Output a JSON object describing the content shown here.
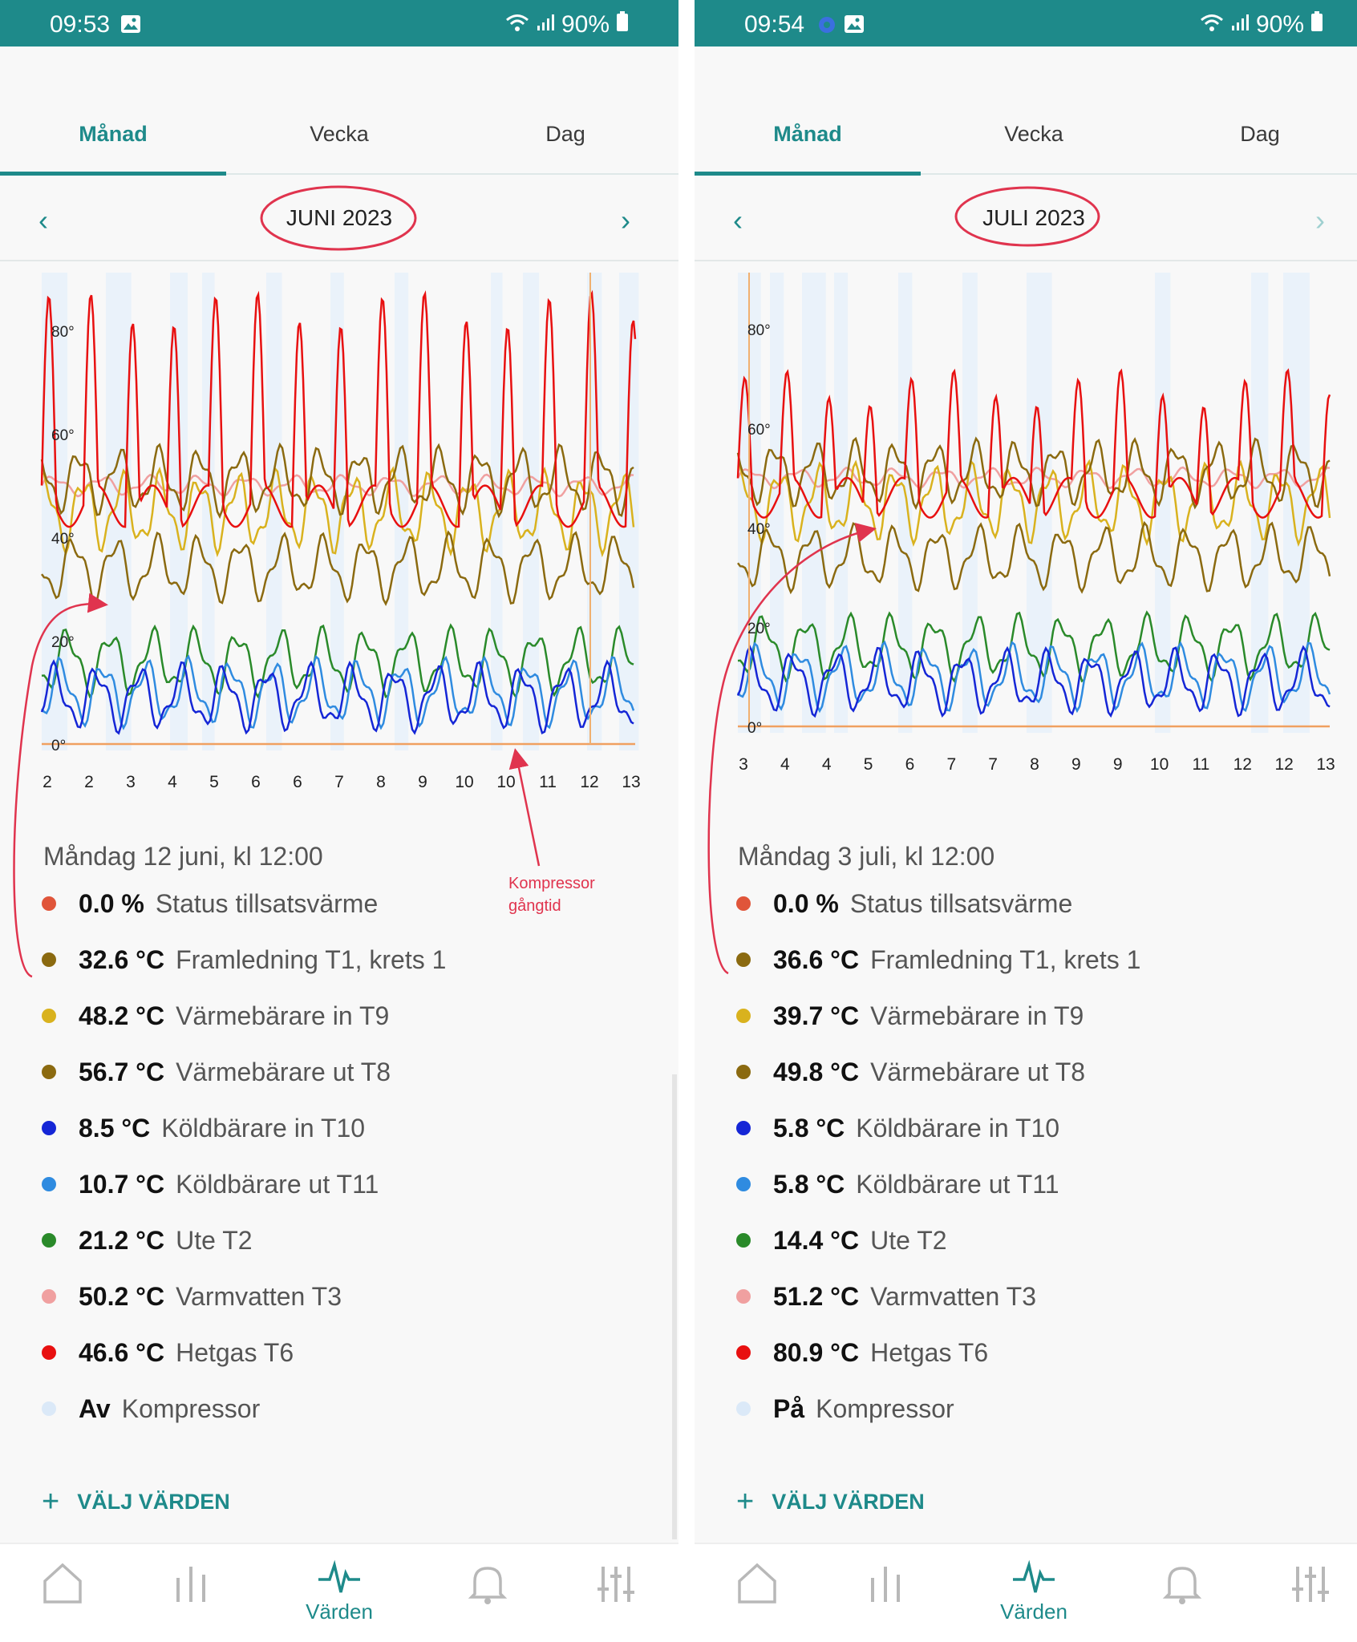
{
  "left": {
    "status": {
      "time": "09:53",
      "battery": "90%"
    },
    "tabs": [
      "Månad",
      "Vecka",
      "Dag"
    ],
    "month": "JUNI 2023",
    "chart": {
      "y_ticks": [
        "80°",
        "60°",
        "40°",
        "20°",
        "0°"
      ],
      "x_ticks": [
        "2",
        "2",
        "3",
        "4",
        "5",
        "6",
        "6",
        "7",
        "8",
        "9",
        "10",
        "10",
        "11",
        "12",
        "13"
      ]
    },
    "readout_title": "Måndag 12 juni, kl 12:00",
    "readings": [
      {
        "value": "0.0 %",
        "label": "Status tillsatsvärme",
        "color": "#e0553a"
      },
      {
        "value": "32.6 °C",
        "label": "Framledning T1, krets 1",
        "color": "#8b6a10"
      },
      {
        "value": "48.2 °C",
        "label": "Värmebärare in T9",
        "color": "#d9b21e"
      },
      {
        "value": "56.7 °C",
        "label": "Värmebärare ut T8",
        "color": "#8b6a10"
      },
      {
        "value": "8.5 °C",
        "label": "Köldbärare in T10",
        "color": "#1526d6"
      },
      {
        "value": "10.7 °C",
        "label": "Köldbärare ut T11",
        "color": "#2f8be0"
      },
      {
        "value": "21.2 °C",
        "label": "Ute T2",
        "color": "#2a8a2a"
      },
      {
        "value": "50.2 °C",
        "label": "Varmvatten T3",
        "color": "#f0a0a0"
      },
      {
        "value": "46.6 °C",
        "label": "Hetgas T6",
        "color": "#e81010"
      },
      {
        "value": "Av",
        "label": "Kompressor",
        "color": "#dbe9f8"
      }
    ],
    "choose_label": "VÄLJ VÄRDEN",
    "annotation": {
      "line1": "Kompressor",
      "line2": "gångtid"
    },
    "nav": {
      "active_label": "Värden"
    }
  },
  "right": {
    "status": {
      "time": "09:54",
      "battery": "90%"
    },
    "tabs": [
      "Månad",
      "Vecka",
      "Dag"
    ],
    "month": "JULI 2023",
    "chart": {
      "y_ticks": [
        "80°",
        "60°",
        "40°",
        "20°",
        "0°"
      ],
      "x_ticks": [
        "3",
        "4",
        "4",
        "5",
        "6",
        "7",
        "7",
        "8",
        "9",
        "9",
        "10",
        "11",
        "12",
        "12",
        "13"
      ]
    },
    "readout_title": "Måndag 3 juli, kl 12:00",
    "readings": [
      {
        "value": "0.0 %",
        "label": "Status tillsatsvärme",
        "color": "#e0553a"
      },
      {
        "value": "36.6 °C",
        "label": "Framledning T1, krets 1",
        "color": "#8b6a10"
      },
      {
        "value": "39.7 °C",
        "label": "Värmebärare in T9",
        "color": "#d9b21e"
      },
      {
        "value": "49.8 °C",
        "label": "Värmebärare ut T8",
        "color": "#8b6a10"
      },
      {
        "value": "5.8 °C",
        "label": "Köldbärare in T10",
        "color": "#1526d6"
      },
      {
        "value": "5.8 °C",
        "label": "Köldbärare ut T11",
        "color": "#2f8be0"
      },
      {
        "value": "14.4 °C",
        "label": "Ute T2",
        "color": "#2a8a2a"
      },
      {
        "value": "51.2 °C",
        "label": "Varmvatten T3",
        "color": "#f0a0a0"
      },
      {
        "value": "80.9 °C",
        "label": "Hetgas T6",
        "color": "#e81010"
      },
      {
        "value": "På",
        "label": "Kompressor",
        "color": "#dbe9f8"
      }
    ],
    "choose_label": "VÄLJ VÄRDEN",
    "nav": {
      "active_label": "Värden"
    }
  }
}
